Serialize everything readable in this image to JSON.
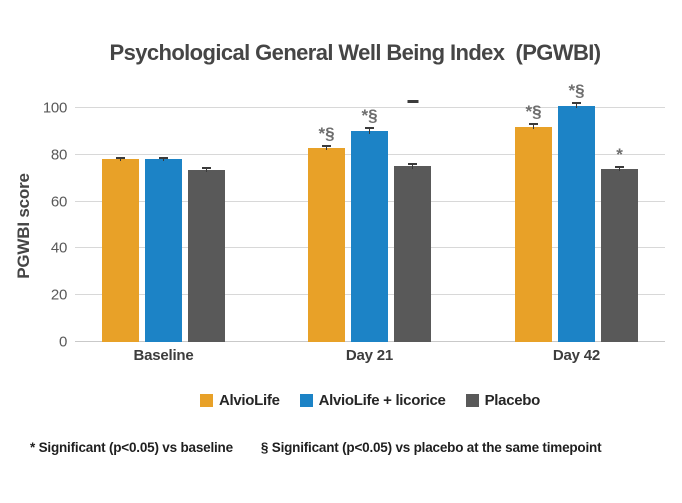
{
  "header": {
    "title": "Psychological General Well Being Index  (PGWBI)"
  },
  "chart_data": {
    "type": "bar",
    "title": "Psychological General Well Being Index (PGWBI)",
    "xlabel": "",
    "ylabel": "PGWBI score",
    "categories": [
      "Baseline",
      "Day 21",
      "Day 42"
    ],
    "series": [
      {
        "name": "AlvioLife",
        "color": "#E8A128",
        "values": [
          78,
          83,
          92
        ],
        "errors": [
          0.8,
          0.8,
          1.2
        ],
        "significance": [
          "",
          "*§",
          "*§"
        ]
      },
      {
        "name": "AlvioLife + licorice",
        "color": "#1C83C6",
        "values": [
          78,
          90,
          101
        ],
        "errors": [
          0.8,
          1.2,
          1.2
        ],
        "significance": [
          "",
          "*§",
          "*§"
        ]
      },
      {
        "name": "Placebo",
        "color": "#595959",
        "values": [
          73.5,
          75,
          74
        ],
        "errors": [
          0.8,
          1.2,
          0.8
        ],
        "significance": [
          "",
          "",
          "*"
        ]
      }
    ],
    "yticks": [
      0,
      20,
      40,
      60,
      80,
      100
    ],
    "ylim": [
      0,
      105.5
    ],
    "grid": true,
    "legend_position": "bottom",
    "extra_annotation": {
      "text": "-",
      "category": "Day 21",
      "series": "Placebo",
      "value": 102
    }
  },
  "footnotes": {
    "asterisk": "* Significant (p<0.05) vs baseline",
    "section": "§ Significant (p<0.05) vs placebo at the same timepoint"
  }
}
